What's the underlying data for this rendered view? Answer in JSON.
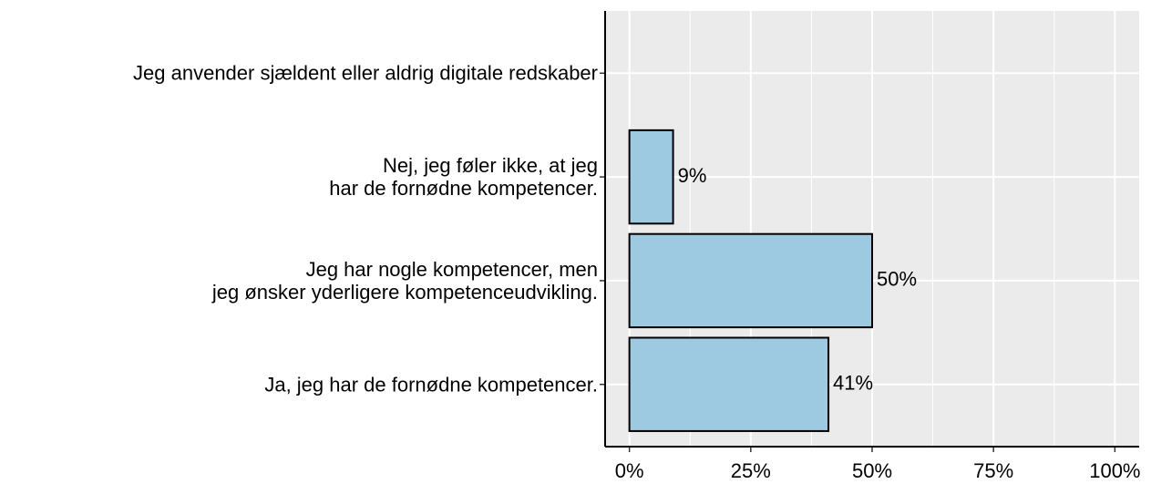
{
  "chart_data": {
    "type": "bar",
    "orientation": "horizontal",
    "categories": [
      "Jeg anvender sjældent eller aldrig digitale redskaber",
      "Nej, jeg føler ikke, at jeg\nhar de fornødne kompetencer.",
      "Jeg har nogle kompetencer, men\njeg ønsker yderligere kompetenceudvikling.",
      "Ja, jeg har de fornødne kompetencer."
    ],
    "values": [
      null,
      9,
      50,
      41
    ],
    "value_labels": [
      null,
      "9%",
      "50%",
      "41%"
    ],
    "color": "#9ecae1",
    "xlim": [
      -5,
      105
    ],
    "xticks": [
      {
        "value": 0,
        "label": "0%"
      },
      {
        "value": 25,
        "label": "25%"
      },
      {
        "value": 50,
        "label": "50%"
      },
      {
        "value": 75,
        "label": "75%"
      },
      {
        "value": 100,
        "label": "100%"
      }
    ],
    "grid": true
  }
}
